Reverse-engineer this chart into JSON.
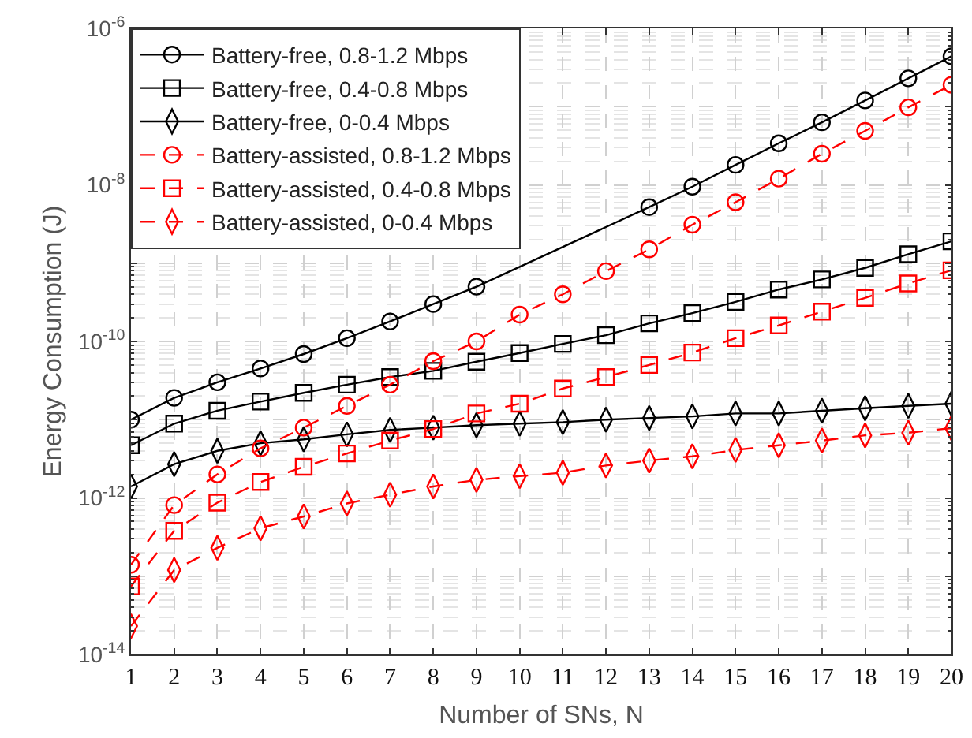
{
  "chart_data": {
    "type": "line",
    "xlabel": "Number of SNs, N",
    "ylabel": "Energy Consumption (J)",
    "log": "y",
    "grid": true,
    "legend": "top left",
    "x": [
      1,
      2,
      3,
      4,
      5,
      6,
      7,
      8,
      9,
      10,
      11,
      12,
      13,
      14,
      15,
      16,
      17,
      18,
      19,
      20
    ],
    "xlim": [
      1,
      20
    ],
    "xticks": [
      1,
      2,
      3,
      4,
      5,
      6,
      7,
      8,
      9,
      10,
      11,
      12,
      13,
      14,
      15,
      16,
      17,
      18,
      19,
      20
    ],
    "ylim": [
      1e-14,
      1e-06
    ],
    "yticks": [
      {
        "value": 1e-14,
        "label": "10$^{-14}$"
      },
      {
        "value": 1e-13,
        "label": null
      },
      {
        "value": 1e-12,
        "label": "10$^{-12}$"
      },
      {
        "value": 1e-11,
        "label": null
      },
      {
        "value": 1e-10,
        "label": "10$^{-10}$"
      },
      {
        "value": 1e-09,
        "label": null
      },
      {
        "value": 1e-08,
        "label": "10$^{-8}$"
      },
      {
        "value": 1e-07,
        "label": null
      },
      {
        "value": 1e-06,
        "label": "10$^{-6}$"
      }
    ],
    "series": [
      {
        "name": "Battery-free, 0.8-1.2 Mbps",
        "color": "#000000",
        "marker": "circle",
        "line_style": "solid",
        "values": [
          1e-11,
          1.9e-11,
          3e-11,
          4.5e-11,
          6.9e-11,
          1.1e-10,
          1.8e-10,
          3e-10,
          5e-10,
          null,
          null,
          null,
          5.2e-09,
          9.5e-09,
          1.8e-08,
          3.4e-08,
          6.3e-08,
          1.2e-07,
          2.3e-07,
          4.4e-07
        ]
      },
      {
        "name": "Battery-free, 0.4-0.8 Mbps",
        "color": "#000000",
        "marker": "square",
        "line_style": "solid",
        "values": [
          4.7e-12,
          8.9e-12,
          1.3e-11,
          1.7e-11,
          2.2e-11,
          2.8e-11,
          3.5e-11,
          4.2e-11,
          5.5e-11,
          7.1e-11,
          9.3e-11,
          1.2e-10,
          1.7e-10,
          2.3e-10,
          3.2e-10,
          4.6e-10,
          6.2e-10,
          8.7e-10,
          1.3e-09,
          1.9e-09
        ]
      },
      {
        "name": "Battery-free, 0-0.4 Mbps",
        "color": "#000000",
        "marker": "diamond",
        "line_style": "solid",
        "values": [
          1.4e-12,
          2.7e-12,
          4e-12,
          5e-12,
          5.6e-12,
          6.5e-12,
          7.4e-12,
          7.9e-12,
          8.5e-12,
          8.9e-12,
          9.3e-12,
          1e-11,
          1.05e-11,
          1.1e-11,
          1.2e-11,
          1.2e-11,
          1.3e-11,
          1.4e-11,
          1.5e-11,
          1.6e-11
        ]
      },
      {
        "name": "Battery-assisted, 0.8-1.2 Mbps",
        "color": "#ff0000",
        "marker": "circle",
        "line_style": "dashed",
        "values": [
          1.4e-13,
          8.1e-13,
          2e-12,
          4.3e-12,
          7.9e-12,
          1.5e-11,
          2.8e-11,
          5.6e-11,
          1e-10,
          2.2e-10,
          4e-10,
          7.9e-10,
          1.5e-09,
          3.1e-09,
          6e-09,
          1.2e-08,
          2.5e-08,
          4.9e-08,
          9.8e-08,
          1.9e-07
        ]
      },
      {
        "name": "Battery-assisted, 0.4-0.8 Mbps",
        "color": "#ff0000",
        "marker": "square",
        "line_style": "dashed",
        "values": [
          7.4e-14,
          3.8e-13,
          8.7e-13,
          1.6e-12,
          2.5e-12,
          3.7e-12,
          5.4e-12,
          7.6e-12,
          1.2e-11,
          1.6e-11,
          2.5e-11,
          3.5e-11,
          5e-11,
          7.2e-11,
          1.1e-10,
          1.6e-10,
          2.4e-10,
          3.6e-10,
          5.5e-10,
          8.1e-10
        ]
      },
      {
        "name": "Battery-assisted, 0-0.4 Mbps",
        "color": "#ff0000",
        "marker": "diamond",
        "line_style": "dashed",
        "values": [
          2.3e-14,
          1.2e-13,
          2.3e-13,
          4.1e-13,
          5.8e-13,
          8.5e-13,
          1.1e-12,
          1.4e-12,
          1.7e-12,
          1.9e-12,
          2.1e-12,
          2.6e-12,
          3e-12,
          3.4e-12,
          4.1e-12,
          4.7e-12,
          5.4e-12,
          6.3e-12,
          6.8e-12,
          7.8e-12
        ]
      }
    ]
  }
}
